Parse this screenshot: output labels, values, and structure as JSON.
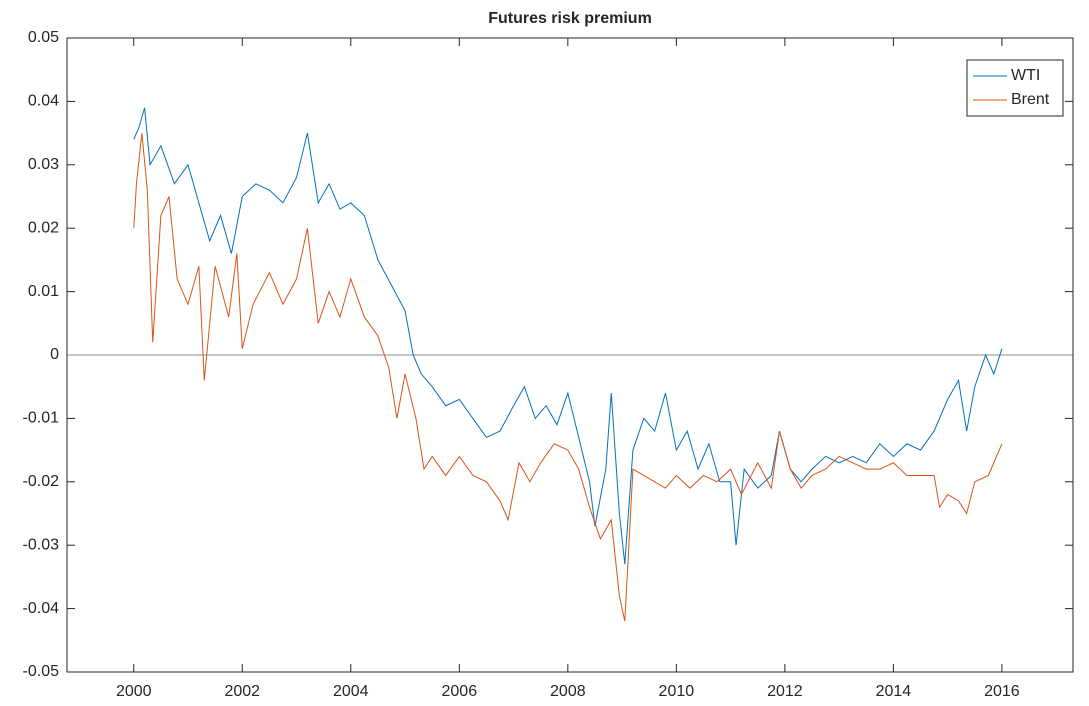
{
  "chart_data": {
    "type": "line",
    "title": "Futures risk premium",
    "xlim": [
      1998.77,
      2017.31
    ],
    "xticks": [
      2000,
      2002,
      2004,
      2006,
      2008,
      2010,
      2012,
      2014,
      2016
    ],
    "ylim": [
      -0.05,
      0.05
    ],
    "yticks": [
      -0.05,
      -0.04,
      -0.03,
      -0.02,
      -0.01,
      0,
      0.01,
      0.02,
      0.03,
      0.04,
      0.05
    ],
    "hline": 0,
    "legend": "top-right",
    "series": [
      {
        "name": "WTI",
        "color": "#0072BD",
        "x": [
          2000.0,
          2000.1,
          2000.2,
          2000.3,
          2000.5,
          2000.75,
          2001.0,
          2001.2,
          2001.4,
          2001.6,
          2001.8,
          2002.0,
          2002.25,
          2002.5,
          2002.75,
          2003.0,
          2003.2,
          2003.4,
          2003.6,
          2003.8,
          2004.0,
          2004.25,
          2004.5,
          2004.75,
          2005.0,
          2005.15,
          2005.3,
          2005.5,
          2005.75,
          2006.0,
          2006.25,
          2006.5,
          2006.75,
          2007.0,
          2007.2,
          2007.4,
          2007.6,
          2007.8,
          2008.0,
          2008.2,
          2008.4,
          2008.5,
          2008.7,
          2008.8,
          2008.95,
          2009.05,
          2009.2,
          2009.4,
          2009.6,
          2009.8,
          2010.0,
          2010.2,
          2010.4,
          2010.6,
          2010.8,
          2011.0,
          2011.1,
          2011.25,
          2011.5,
          2011.75,
          2011.9,
          2012.1,
          2012.3,
          2012.5,
          2012.75,
          2013.0,
          2013.25,
          2013.5,
          2013.75,
          2014.0,
          2014.25,
          2014.5,
          2014.75,
          2015.0,
          2015.2,
          2015.35,
          2015.5,
          2015.7,
          2015.85,
          2016.0
        ],
        "values": [
          0.034,
          0.036,
          0.039,
          0.03,
          0.033,
          0.027,
          0.03,
          0.024,
          0.018,
          0.022,
          0.016,
          0.025,
          0.027,
          0.026,
          0.024,
          0.028,
          0.035,
          0.024,
          0.027,
          0.023,
          0.024,
          0.022,
          0.015,
          0.011,
          0.007,
          0.0,
          -0.003,
          -0.005,
          -0.008,
          -0.007,
          -0.01,
          -0.013,
          -0.012,
          -0.008,
          -0.005,
          -0.01,
          -0.008,
          -0.011,
          -0.006,
          -0.013,
          -0.02,
          -0.027,
          -0.018,
          -0.006,
          -0.025,
          -0.033,
          -0.015,
          -0.01,
          -0.012,
          -0.006,
          -0.015,
          -0.012,
          -0.018,
          -0.014,
          -0.02,
          -0.02,
          -0.03,
          -0.018,
          -0.021,
          -0.019,
          -0.012,
          -0.018,
          -0.02,
          -0.018,
          -0.016,
          -0.017,
          -0.016,
          -0.017,
          -0.014,
          -0.016,
          -0.014,
          -0.015,
          -0.012,
          -0.007,
          -0.004,
          -0.012,
          -0.005,
          0.0,
          -0.003,
          0.001
        ]
      },
      {
        "name": "Brent",
        "color": "#D95319",
        "x": [
          2000.0,
          2000.05,
          2000.15,
          2000.25,
          2000.35,
          2000.5,
          2000.65,
          2000.8,
          2001.0,
          2001.2,
          2001.3,
          2001.5,
          2001.75,
          2001.9,
          2002.0,
          2002.2,
          2002.5,
          2002.75,
          2003.0,
          2003.2,
          2003.4,
          2003.6,
          2003.8,
          2004.0,
          2004.25,
          2004.5,
          2004.7,
          2004.85,
          2005.0,
          2005.2,
          2005.35,
          2005.5,
          2005.75,
          2006.0,
          2006.25,
          2006.5,
          2006.75,
          2006.9,
          2007.1,
          2007.3,
          2007.5,
          2007.75,
          2008.0,
          2008.2,
          2008.4,
          2008.6,
          2008.8,
          2008.95,
          2009.05,
          2009.2,
          2009.4,
          2009.6,
          2009.8,
          2010.0,
          2010.25,
          2010.5,
          2010.75,
          2011.0,
          2011.2,
          2011.5,
          2011.75,
          2011.9,
          2012.1,
          2012.3,
          2012.5,
          2012.75,
          2013.0,
          2013.25,
          2013.5,
          2013.75,
          2014.0,
          2014.25,
          2014.5,
          2014.75,
          2014.85,
          2015.0,
          2015.2,
          2015.35,
          2015.5,
          2015.75,
          2016.0
        ],
        "values": [
          0.02,
          0.027,
          0.035,
          0.026,
          0.002,
          0.022,
          0.025,
          0.012,
          0.008,
          0.014,
          -0.004,
          0.014,
          0.006,
          0.016,
          0.001,
          0.008,
          0.013,
          0.008,
          0.012,
          0.02,
          0.005,
          0.01,
          0.006,
          0.012,
          0.006,
          0.003,
          -0.002,
          -0.01,
          -0.003,
          -0.01,
          -0.018,
          -0.016,
          -0.019,
          -0.016,
          -0.019,
          -0.02,
          -0.023,
          -0.026,
          -0.017,
          -0.02,
          -0.017,
          -0.014,
          -0.015,
          -0.018,
          -0.024,
          -0.029,
          -0.026,
          -0.038,
          -0.042,
          -0.018,
          -0.019,
          -0.02,
          -0.021,
          -0.019,
          -0.021,
          -0.019,
          -0.02,
          -0.018,
          -0.022,
          -0.017,
          -0.021,
          -0.012,
          -0.018,
          -0.021,
          -0.019,
          -0.018,
          -0.016,
          -0.017,
          -0.018,
          -0.018,
          -0.017,
          -0.019,
          -0.019,
          -0.019,
          -0.024,
          -0.022,
          -0.023,
          -0.025,
          -0.02,
          -0.019,
          -0.014
        ]
      }
    ]
  }
}
